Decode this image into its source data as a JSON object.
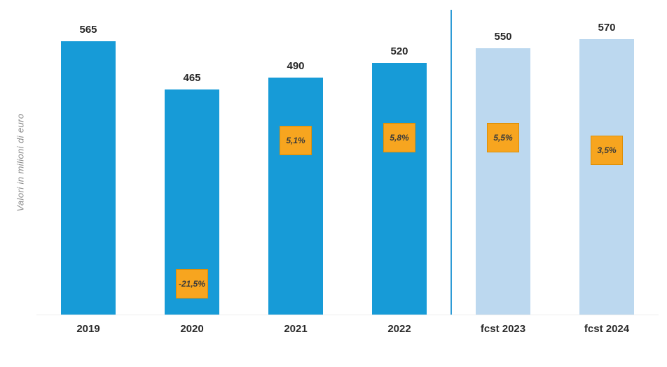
{
  "chart_data": {
    "type": "bar",
    "title": "",
    "xlabel": "",
    "ylabel": "Valori in  milioni di euro",
    "categories": [
      "2019",
      "2020",
      "2021",
      "2022",
      "fcst 2023",
      "fcst 2024"
    ],
    "values": [
      565,
      465,
      490,
      520,
      550,
      570
    ],
    "value_labels": [
      "565",
      "465",
      "490",
      "520",
      "550",
      "570"
    ],
    "pct_labels": [
      null,
      "-21,5%",
      "5,1%",
      "5,8%",
      "5,5%",
      "3,5%"
    ],
    "pct_y_frac": [
      null,
      0.9,
      0.43,
      0.42,
      0.42,
      0.46
    ],
    "bar_types": [
      "actual",
      "actual",
      "actual",
      "actual",
      "forecast",
      "forecast"
    ],
    "ylim": [
      0,
      630
    ],
    "grid": false,
    "legend": "none",
    "separator_after_index": 3,
    "colors": {
      "actual_bar": "#179BD7",
      "forecast_bar": "#BCD8EF",
      "pct_box_fill": "#F7A51F",
      "pct_box_border": "#DE8F06",
      "separator": "#2E9BD6",
      "value_label": "#262626",
      "axis_caption": "#8C8C8C"
    }
  }
}
